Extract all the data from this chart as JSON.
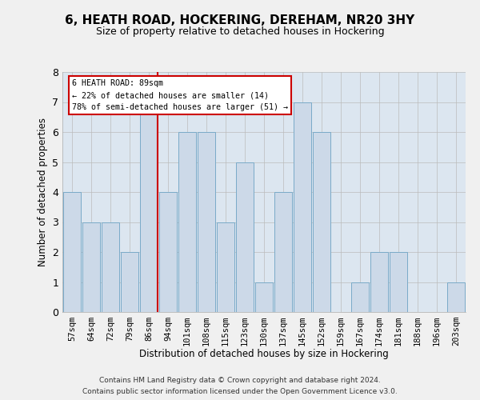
{
  "title": "6, HEATH ROAD, HOCKERING, DEREHAM, NR20 3HY",
  "subtitle": "Size of property relative to detached houses in Hockering",
  "xlabel": "Distribution of detached houses by size in Hockering",
  "ylabel": "Number of detached properties",
  "categories": [
    "57sqm",
    "64sqm",
    "72sqm",
    "79sqm",
    "86sqm",
    "94sqm",
    "101sqm",
    "108sqm",
    "115sqm",
    "123sqm",
    "130sqm",
    "137sqm",
    "145sqm",
    "152sqm",
    "159sqm",
    "167sqm",
    "174sqm",
    "181sqm",
    "188sqm",
    "196sqm",
    "203sqm"
  ],
  "values": [
    4,
    3,
    3,
    2,
    7,
    4,
    6,
    6,
    3,
    5,
    1,
    4,
    7,
    6,
    0,
    1,
    2,
    2,
    0,
    0,
    1
  ],
  "bar_color": "#ccd9e8",
  "bar_edge_color": "#7aaac8",
  "highlight_index": 4,
  "highlight_line_color": "#cc0000",
  "annotation_text": "6 HEATH ROAD: 89sqm\n← 22% of detached houses are smaller (14)\n78% of semi-detached houses are larger (51) →",
  "annotation_box_color": "#cc0000",
  "ylim": [
    0,
    8
  ],
  "yticks": [
    0,
    1,
    2,
    3,
    4,
    5,
    6,
    7,
    8
  ],
  "grid_color": "#bbbbbb",
  "background_color": "#dce6f0",
  "fig_background_color": "#f0f0f0",
  "footer_line1": "Contains HM Land Registry data © Crown copyright and database right 2024.",
  "footer_line2": "Contains public sector information licensed under the Open Government Licence v3.0."
}
